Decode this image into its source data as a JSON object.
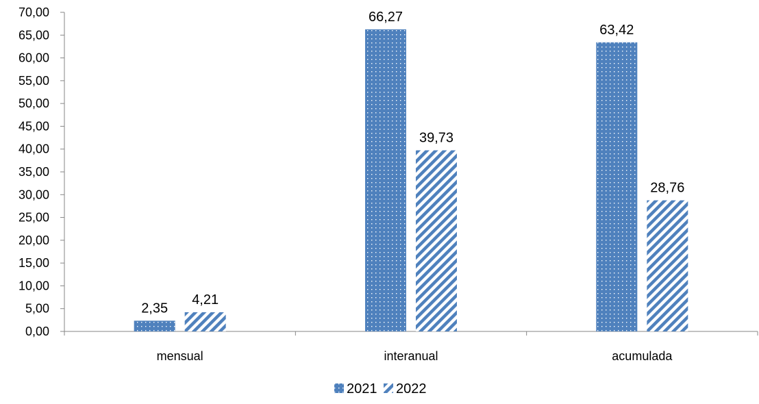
{
  "chart_data": {
    "type": "bar",
    "title": "",
    "xlabel": "",
    "ylabel": "",
    "categories": [
      "mensual",
      "interanual",
      "acumulada"
    ],
    "series": [
      {
        "name": "2021",
        "values": [
          2.35,
          66.27,
          63.42
        ],
        "labels": [
          "2,35",
          "66,27",
          "63,42"
        ],
        "color": "#4F81BD",
        "pattern": "dots"
      },
      {
        "name": "2022",
        "values": [
          4.21,
          39.73,
          28.76
        ],
        "labels": [
          "4,21",
          "39,73",
          "28,76"
        ],
        "color": "#4F81BD",
        "pattern": "diagonal-stripes"
      }
    ],
    "ylim": [
      0,
      70
    ],
    "ytick_step": 5,
    "ytick_labels": [
      "0,00",
      "5,00",
      "10,00",
      "15,00",
      "20,00",
      "25,00",
      "30,00",
      "35,00",
      "40,00",
      "45,00",
      "50,00",
      "55,00",
      "60,00",
      "65,00",
      "70,00"
    ],
    "grid": false,
    "legend": "bottom-center"
  }
}
